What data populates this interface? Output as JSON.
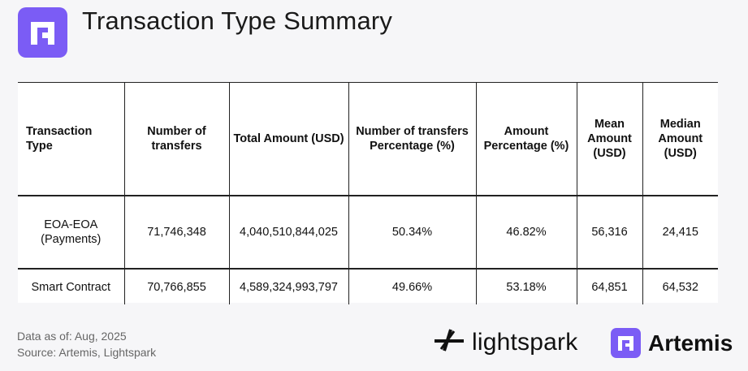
{
  "header": {
    "title": "Transaction Type Summary",
    "logo_icon": "artemis-logo-icon",
    "accent_color": "#7b5cf5"
  },
  "table": {
    "columns": [
      "Transaction Type",
      "Number of transfers",
      "Total Amount (USD)",
      "Number of transfers Percentage (%)",
      "Amount Percentage (%)",
      "Mean Amount (USD)",
      "Median Amount (USD)"
    ],
    "rows": [
      [
        "EOA-EOA (Payments)",
        "71,746,348",
        "4,040,510,844,025",
        "50.34%",
        "46.82%",
        "56,316",
        "24,415"
      ],
      [
        "Smart Contract",
        "70,766,855",
        "4,589,324,993,797",
        "49.66%",
        "53.18%",
        "64,851",
        "64,532"
      ]
    ]
  },
  "footer": {
    "data_as_of": "Data as of: Aug, 2025",
    "source": "Source: Artemis, Lightspark"
  },
  "brands": {
    "lightspark_label": "lightspark",
    "artemis_label": "Artemis"
  }
}
